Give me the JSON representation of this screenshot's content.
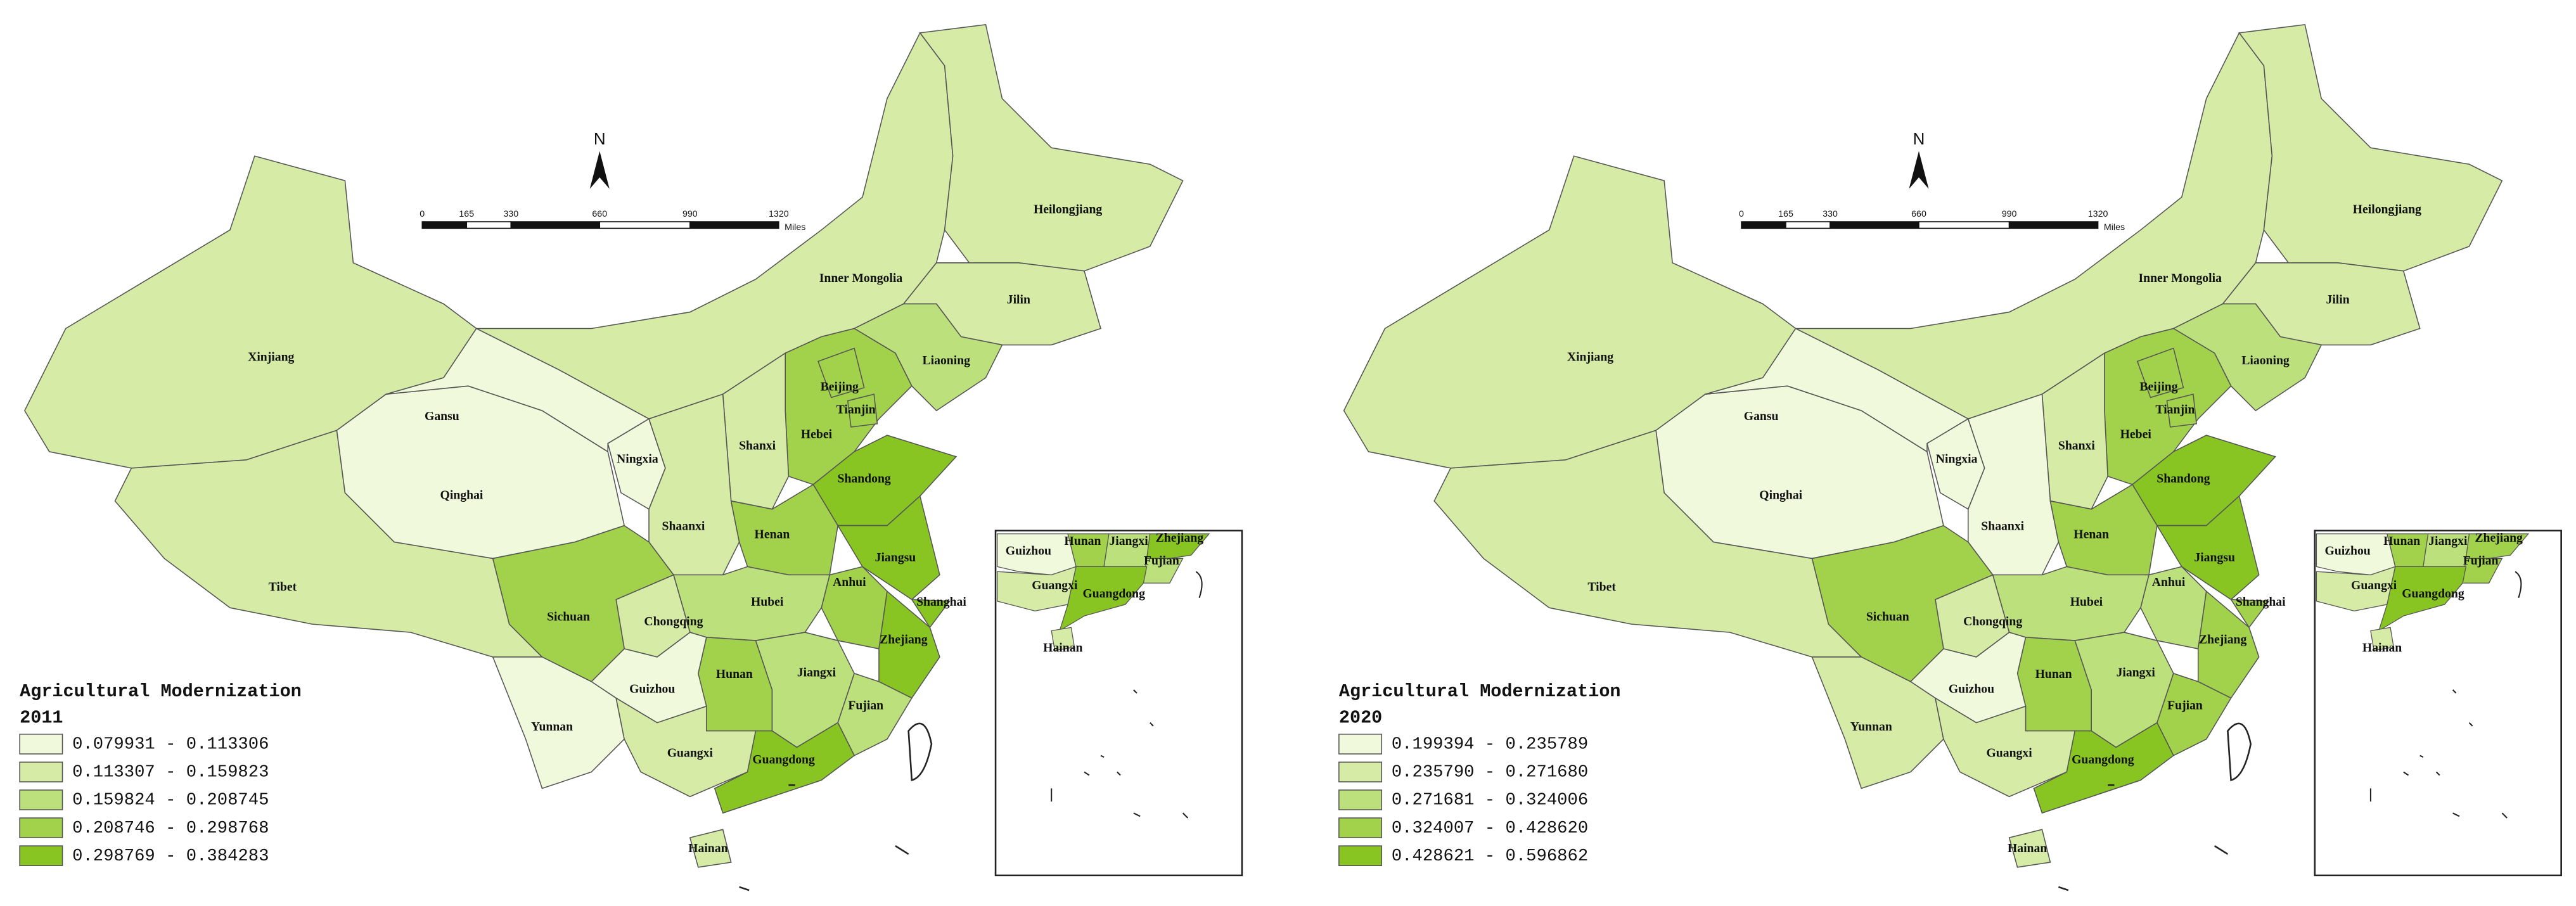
{
  "maps": [
    {
      "legend": {
        "title": "Agricultural Modernization",
        "year": "2011",
        "classes": [
          {
            "label": "0.079931 - 0.113306",
            "color": "#f1f9dc"
          },
          {
            "label": "0.113307 - 0.159823",
            "color": "#d5eba6"
          },
          {
            "label": "0.159824 - 0.208745",
            "color": "#bce07c"
          },
          {
            "label": "0.208746 - 0.298768",
            "color": "#a2d24b"
          },
          {
            "label": "0.298769 - 0.384283",
            "color": "#88c523"
          }
        ]
      },
      "north": "N",
      "scale_bar": {
        "ticks": [
          "0",
          "165",
          "330",
          "660",
          "990",
          "1320"
        ],
        "unit": "Miles"
      },
      "regions": [
        {
          "label": "Xinjiang",
          "color": "#d5eba6"
        },
        {
          "label": "Tibet",
          "color": "#d5eba6"
        },
        {
          "label": "Qinghai",
          "color": "#f1f9dc"
        },
        {
          "label": "Gansu",
          "color": "#f1f9dc"
        },
        {
          "label": "Inner Mongolia",
          "color": "#d5eba6"
        },
        {
          "label": "Heilongjiang",
          "color": "#d5eba6"
        },
        {
          "label": "Jilin",
          "color": "#d5eba6"
        },
        {
          "label": "Liaoning",
          "color": "#bce07c"
        },
        {
          "label": "Hebei",
          "color": "#a2d24b"
        },
        {
          "label": "Beijing",
          "color": "#a2d24b"
        },
        {
          "label": "Tianjin",
          "color": "#a2d24b"
        },
        {
          "label": "Shanxi",
          "color": "#d5eba6"
        },
        {
          "label": "Shandong",
          "color": "#88c523"
        },
        {
          "label": "Ningxia",
          "color": "#f1f9dc"
        },
        {
          "label": "Shaanxi",
          "color": "#d5eba6"
        },
        {
          "label": "Henan",
          "color": "#a2d24b"
        },
        {
          "label": "Jiangsu",
          "color": "#88c523"
        },
        {
          "label": "Anhui",
          "color": "#a2d24b"
        },
        {
          "label": "Shanghai",
          "color": "#88c523"
        },
        {
          "label": "Zhejiang",
          "color": "#88c523"
        },
        {
          "label": "Hubei",
          "color": "#bce07c"
        },
        {
          "label": "Chongqing",
          "color": "#d5eba6"
        },
        {
          "label": "Sichuan",
          "color": "#a2d24b"
        },
        {
          "label": "Hunan",
          "color": "#a2d24b"
        },
        {
          "label": "Jiangxi",
          "color": "#bce07c"
        },
        {
          "label": "Fujian",
          "color": "#bce07c"
        },
        {
          "label": "Guizhou",
          "color": "#f1f9dc"
        },
        {
          "label": "Yunnan",
          "color": "#f1f9dc"
        },
        {
          "label": "Guangxi",
          "color": "#d5eba6"
        },
        {
          "label": "Guangdong",
          "color": "#88c523"
        },
        {
          "label": "Hainan",
          "color": "#d5eba6"
        }
      ],
      "inset_labels": [
        "Guizhou",
        "Hunan",
        "Jiangxi",
        "Zhejiang",
        "Fujian",
        "Guangxi",
        "Guangdong",
        "Hainan"
      ]
    },
    {
      "legend": {
        "title": "Agricultural Modernization",
        "year": "2020",
        "classes": [
          {
            "label": "0.199394 - 0.235789",
            "color": "#f1f9dc"
          },
          {
            "label": "0.235790 - 0.271680",
            "color": "#d5eba6"
          },
          {
            "label": "0.271681 - 0.324006",
            "color": "#bce07c"
          },
          {
            "label": "0.324007 - 0.428620",
            "color": "#a2d24b"
          },
          {
            "label": "0.428621 - 0.596862",
            "color": "#88c523"
          }
        ]
      },
      "north": "N",
      "scale_bar": {
        "ticks": [
          "0",
          "165",
          "330",
          "660",
          "990",
          "1320"
        ],
        "unit": "Miles"
      },
      "regions": [
        {
          "label": "Xinjiang",
          "color": "#d5eba6"
        },
        {
          "label": "Tibet",
          "color": "#d5eba6"
        },
        {
          "label": "Qinghai",
          "color": "#f1f9dc"
        },
        {
          "label": "Gansu",
          "color": "#f1f9dc"
        },
        {
          "label": "Inner Mongolia",
          "color": "#d5eba6"
        },
        {
          "label": "Heilongjiang",
          "color": "#d5eba6"
        },
        {
          "label": "Jilin",
          "color": "#d5eba6"
        },
        {
          "label": "Liaoning",
          "color": "#bce07c"
        },
        {
          "label": "Hebei",
          "color": "#a2d24b"
        },
        {
          "label": "Beijing",
          "color": "#a2d24b"
        },
        {
          "label": "Tianjin",
          "color": "#a2d24b"
        },
        {
          "label": "Shanxi",
          "color": "#d5eba6"
        },
        {
          "label": "Shandong",
          "color": "#88c523"
        },
        {
          "label": "Ningxia",
          "color": "#f1f9dc"
        },
        {
          "label": "Shaanxi",
          "color": "#f1f9dc"
        },
        {
          "label": "Henan",
          "color": "#a2d24b"
        },
        {
          "label": "Jiangsu",
          "color": "#88c523"
        },
        {
          "label": "Anhui",
          "color": "#bce07c"
        },
        {
          "label": "Shanghai",
          "color": "#a2d24b"
        },
        {
          "label": "Zhejiang",
          "color": "#a2d24b"
        },
        {
          "label": "Hubei",
          "color": "#bce07c"
        },
        {
          "label": "Chongqing",
          "color": "#d5eba6"
        },
        {
          "label": "Sichuan",
          "color": "#a2d24b"
        },
        {
          "label": "Hunan",
          "color": "#a2d24b"
        },
        {
          "label": "Jiangxi",
          "color": "#bce07c"
        },
        {
          "label": "Fujian",
          "color": "#a2d24b"
        },
        {
          "label": "Guizhou",
          "color": "#f1f9dc"
        },
        {
          "label": "Yunnan",
          "color": "#d5eba6"
        },
        {
          "label": "Guangxi",
          "color": "#d5eba6"
        },
        {
          "label": "Guangdong",
          "color": "#88c523"
        },
        {
          "label": "Hainan",
          "color": "#d5eba6"
        }
      ],
      "inset_labels": [
        "Guizhou",
        "Hunan",
        "Jiangxi",
        "Zhejiang",
        "Fujian",
        "Guangxi",
        "Guangdong",
        "Hainan"
      ]
    }
  ]
}
